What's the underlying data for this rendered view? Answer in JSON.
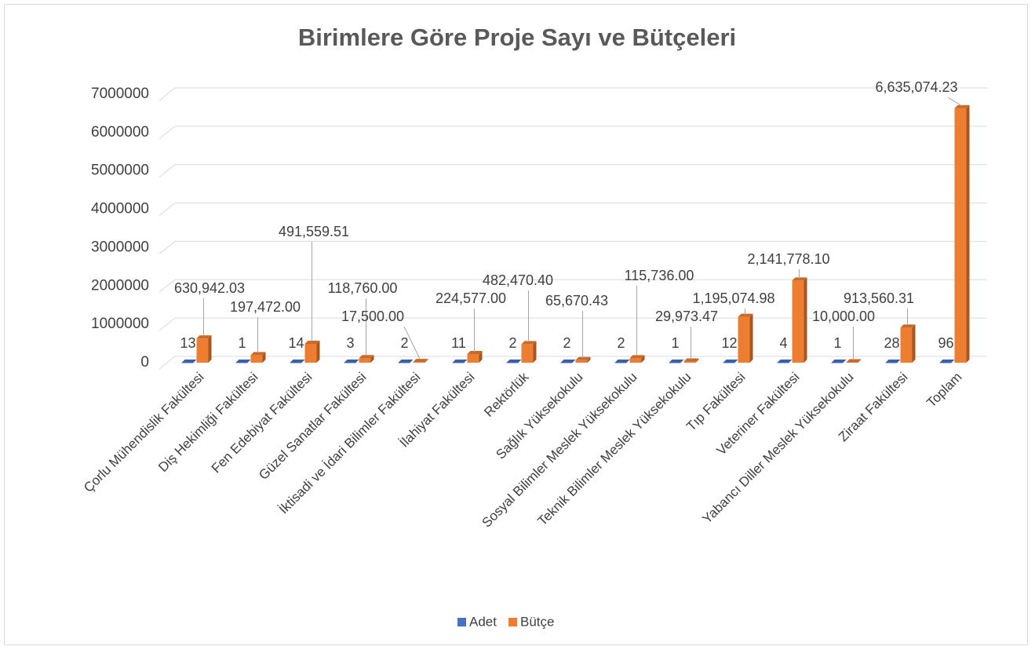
{
  "chart_data": {
    "type": "bar3d",
    "title": "Birimlere Göre Proje Sayı ve Bütçeleri",
    "categories": [
      "Çorlu Mühendislik Fakültesi",
      "Diş Hekimliği Fakültesi",
      "Fen Edebiyat Fakültesi",
      "Güzel Sanatlar Fakültesi",
      "İktisadi ve İdari Bilimler Fakültesi",
      "İlahiyat Fakültesi",
      "Rektörlük",
      "Sağlık Yüksekokulu",
      "Sosyal Bilimler Meslek Yüksekokulu",
      "Teknik Bilimler Meslek Yüksekokulu",
      "Tıp Fakültesi",
      "Veteriner Fakültesi",
      "Yabancı Diller Meslek Yüksekokulu",
      "Ziraat Fakültesi",
      "Toplam"
    ],
    "series": [
      {
        "name": "Adet",
        "color": "#4472c4",
        "values": [
          13,
          1,
          14,
          3,
          2,
          11,
          2,
          2,
          2,
          1,
          12,
          4,
          1,
          28,
          96
        ]
      },
      {
        "name": "Bütçe",
        "color": "#ed7d31",
        "values": [
          630942.03,
          197472,
          491559.51,
          118760,
          17500,
          224577,
          482470.4,
          65670.43,
          115736,
          29973.47,
          1195074.98,
          2141778.1,
          10000,
          913560.31,
          6635074.23
        ],
        "value_labels": [
          "630,942.03",
          "197,472.00",
          "491,559.51",
          "118,760.00",
          "17,500.00",
          "224,577.00",
          "482,470.40",
          "65,670.43",
          "115,736.00",
          "29,973.47",
          "1,195,074.98",
          "2,141,778.10",
          "10,000.00",
          "913,560.31",
          "6,635,074.23"
        ]
      }
    ],
    "ylim": [
      0,
      7000000
    ],
    "yticks": [
      0,
      1000000,
      2000000,
      3000000,
      4000000,
      5000000,
      6000000,
      7000000
    ],
    "grid": true,
    "legend": "bottom"
  }
}
